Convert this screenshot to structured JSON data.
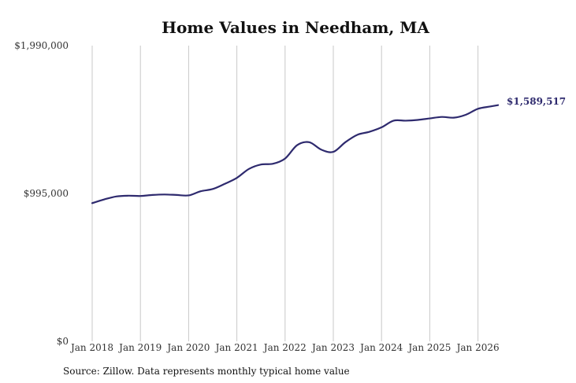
{
  "chart_data": {
    "type": "line",
    "title": "Home Values in Needham, MA",
    "xlabel": "",
    "ylabel": "",
    "x_ticks": [
      "Jan 2018",
      "Jan 2019",
      "Jan 2020",
      "Jan 2021",
      "Jan 2022",
      "Jan 2023",
      "Jan 2024",
      "Jan 2025",
      "Jan 2026"
    ],
    "y_ticks": [
      {
        "value": 0,
        "label": "$0"
      },
      {
        "value": 995000,
        "label": "$995,000"
      },
      {
        "value": 1990000,
        "label": "$1,990,000"
      }
    ],
    "ylim": [
      0,
      1990000
    ],
    "xlim": [
      "2018-01",
      "2026-06"
    ],
    "grid": {
      "vertical": true,
      "horizontal": false
    },
    "line_color": "#2e2a6e",
    "series": [
      {
        "x": [
          "2018-01",
          "2018-04",
          "2018-07",
          "2018-10",
          "2019-01",
          "2019-04",
          "2019-07",
          "2019-10",
          "2020-01",
          "2020-04",
          "2020-07",
          "2020-10",
          "2021-01",
          "2021-04",
          "2021-07",
          "2021-10",
          "2022-01",
          "2022-04",
          "2022-07",
          "2022-10",
          "2023-01",
          "2023-04",
          "2023-07",
          "2023-10",
          "2024-01",
          "2024-04",
          "2024-07",
          "2024-10",
          "2025-01",
          "2025-04",
          "2025-07",
          "2025-10",
          "2026-01",
          "2026-04",
          "2026-06"
        ],
        "values": [
          930000,
          955000,
          975000,
          980000,
          978000,
          985000,
          988000,
          985000,
          982000,
          1010000,
          1025000,
          1060000,
          1100000,
          1160000,
          1190000,
          1195000,
          1230000,
          1320000,
          1340000,
          1290000,
          1275000,
          1340000,
          1390000,
          1410000,
          1440000,
          1485000,
          1485000,
          1490000,
          1500000,
          1510000,
          1505000,
          1525000,
          1565000,
          1580000,
          1589517
        ]
      }
    ],
    "end_label": "$1,589,517"
  },
  "source_note": "Source: Zillow. Data represents monthly typical home value"
}
